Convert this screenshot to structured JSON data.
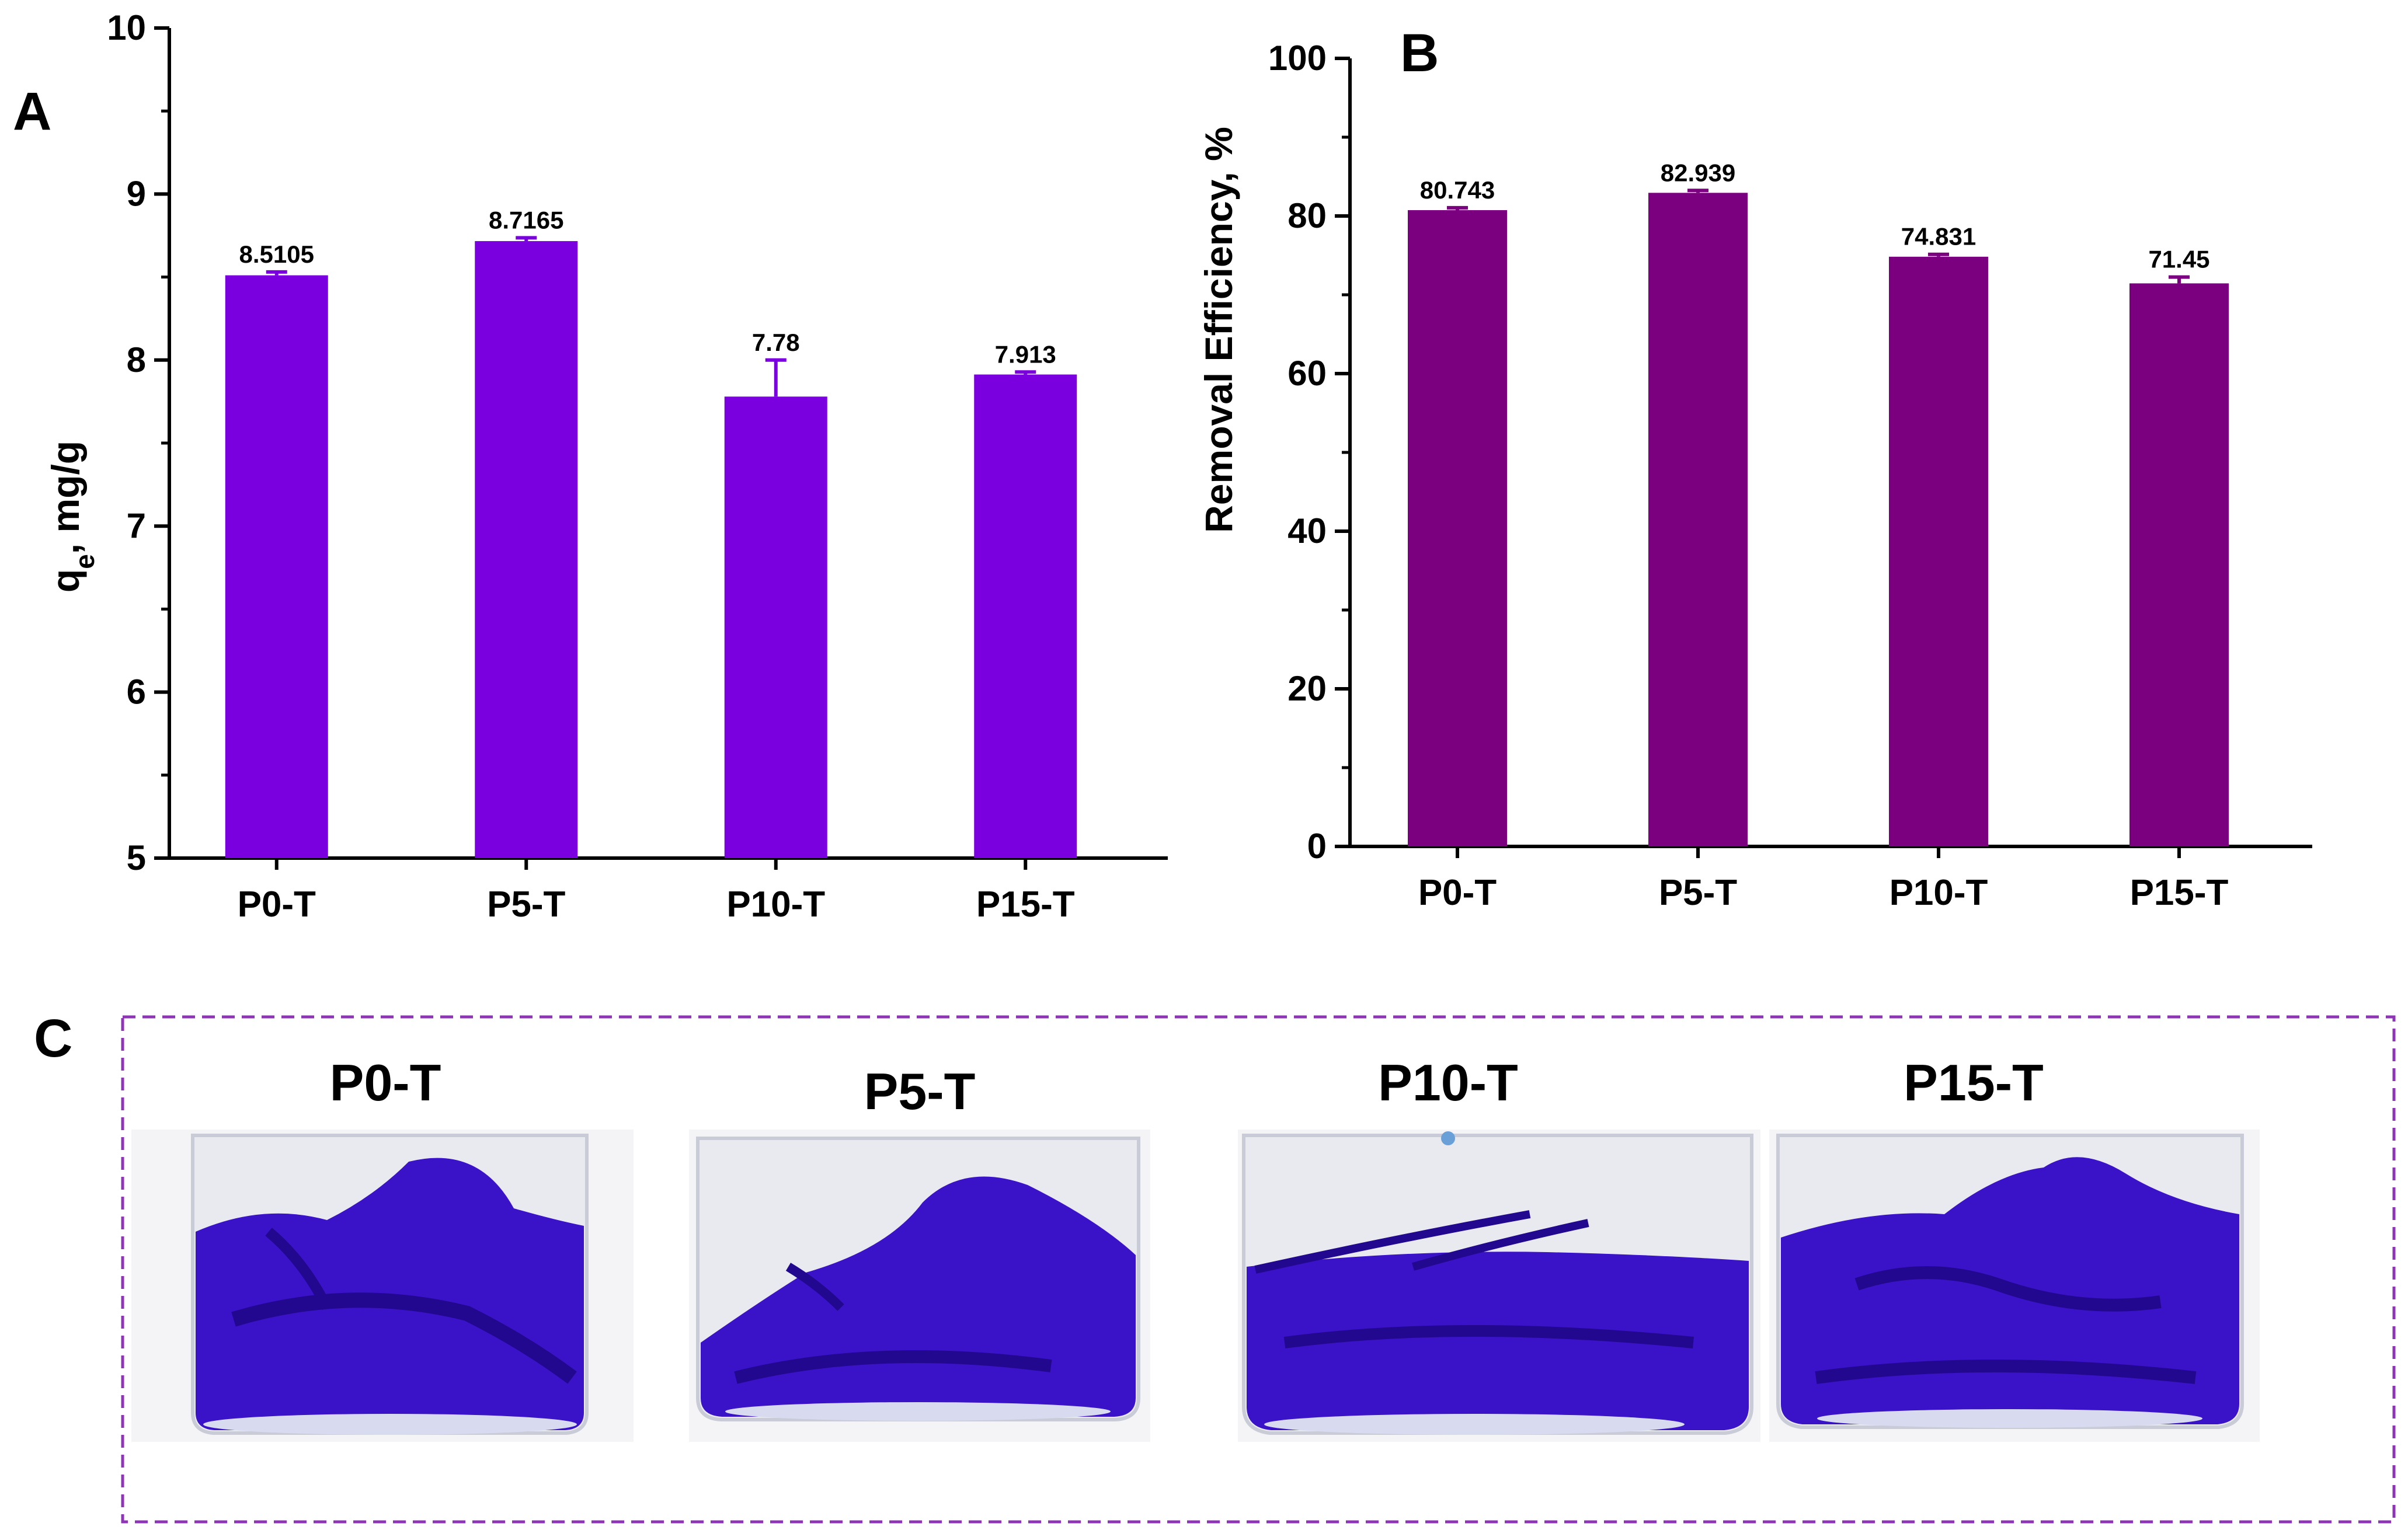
{
  "panels": {
    "a": "A",
    "b": "B",
    "c": "C"
  },
  "chart_data": [
    {
      "type": "bar",
      "categories": [
        "P0-T",
        "P5-T",
        "P10-T",
        "P15-T"
      ],
      "values": [
        8.5105,
        8.7165,
        7.78,
        7.913
      ],
      "errors": [
        0.02,
        0.02,
        0.22,
        0.015
      ],
      "data_labels": [
        "8.5105",
        "8.7165",
        "7.78",
        "7.913"
      ],
      "ylabel_main": "q",
      "ylabel_sub": "e",
      "ylabel_rest": ", mg/g",
      "ylim": [
        5,
        10
      ],
      "yticks": [
        5,
        6,
        7,
        8,
        9,
        10
      ],
      "color": "#7B00E0",
      "grid": false
    },
    {
      "type": "bar",
      "categories": [
        "P0-T",
        "P5-T",
        "P10-T",
        "P15-T"
      ],
      "values": [
        80.743,
        82.939,
        74.831,
        71.45
      ],
      "errors": [
        0.3,
        0.3,
        0.3,
        0.8
      ],
      "data_labels": [
        "80.743",
        "82.939",
        "74.831",
        "71.45"
      ],
      "ylabel": "Removal Efficiency, %",
      "ylim": [
        0,
        100
      ],
      "yticks": [
        0,
        20,
        40,
        60,
        80,
        100
      ],
      "color": "#7A007F",
      "grid": false
    }
  ],
  "photos": {
    "labels": [
      "P0-T",
      "P5-T",
      "P10-T",
      "P15-T"
    ],
    "frame_color": "#8E35B5",
    "dye_color": "#3A12C8"
  }
}
